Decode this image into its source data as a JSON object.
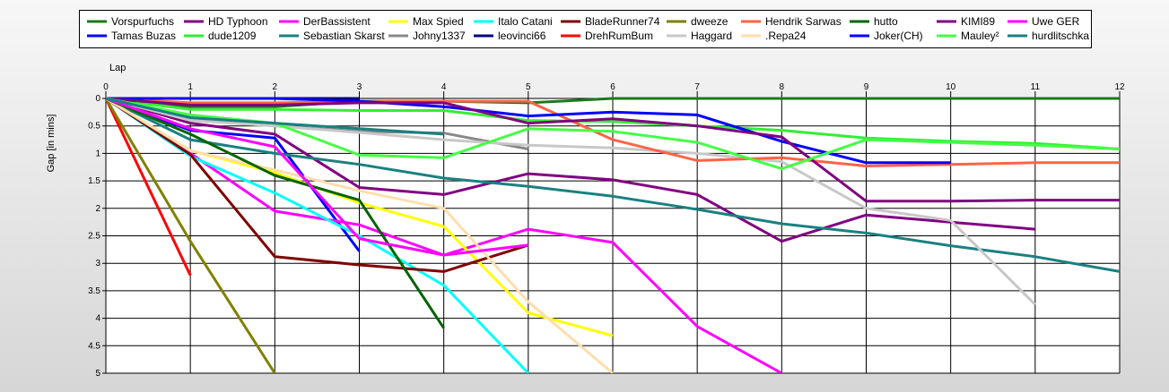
{
  "chart_data": {
    "type": "line",
    "xlabel": "Lap",
    "ylabel": "Gap [in mins]",
    "xlim": [
      0,
      12
    ],
    "ylim": [
      0,
      5
    ],
    "y_inverted": true,
    "x_ticks": [
      "0",
      "1",
      "2",
      "3",
      "4",
      "5",
      "6",
      "7",
      "8",
      "9",
      "10",
      "11",
      "12"
    ],
    "y_ticks": [
      "0",
      "0.5",
      "1",
      "1.5",
      "2",
      "2.5",
      "3",
      "3.5",
      "4",
      "4.5",
      "5"
    ],
    "grid": true,
    "legend_position": "top",
    "series": [
      {
        "name": "Vorspurfuchs",
        "color": "#1a7a1a",
        "values": [
          [
            0,
            0
          ],
          [
            1,
            0.15
          ],
          [
            2,
            0.15
          ],
          [
            3,
            0.05
          ],
          [
            4,
            0.05
          ],
          [
            5,
            0.08
          ],
          [
            6,
            0
          ],
          [
            7,
            0
          ],
          [
            8,
            0
          ],
          [
            9,
            0
          ],
          [
            10,
            0
          ],
          [
            11,
            0
          ],
          [
            12,
            0
          ]
        ]
      },
      {
        "name": "Tamas Buzas",
        "color": "#0000ff",
        "values": [
          [
            0,
            0
          ],
          [
            1,
            0.58
          ],
          [
            2,
            0.72
          ],
          [
            3,
            2.78
          ]
        ]
      },
      {
        "name": "HD Typhoon",
        "color": "#800080",
        "values": [
          [
            0,
            0
          ],
          [
            1,
            0.45
          ],
          [
            2,
            0.65
          ],
          [
            3,
            1.62
          ],
          [
            4,
            1.75
          ],
          [
            5,
            1.37
          ],
          [
            6,
            1.48
          ],
          [
            7,
            1.75
          ],
          [
            8,
            2.6
          ],
          [
            9,
            2.12
          ],
          [
            10,
            2.25
          ],
          [
            11,
            2.38
          ]
        ]
      },
      {
        "name": "dude1209",
        "color": "#33ee33",
        "values": [
          [
            0,
            0
          ],
          [
            1,
            0.2
          ],
          [
            2,
            0.2
          ],
          [
            3,
            0.22
          ],
          [
            4,
            0.22
          ],
          [
            5,
            0.4
          ],
          [
            6,
            0.42
          ],
          [
            7,
            0.5
          ],
          [
            8,
            0.58
          ],
          [
            9,
            0.72
          ],
          [
            10,
            0.78
          ],
          [
            11,
            0.82
          ],
          [
            12,
            0.92
          ]
        ]
      },
      {
        "name": "DerBassistent",
        "color": "#ff00ff",
        "values": [
          [
            0,
            0
          ],
          [
            1,
            1.0
          ],
          [
            2,
            2.05
          ],
          [
            3,
            2.3
          ],
          [
            4,
            2.85
          ],
          [
            5,
            2.38
          ],
          [
            6,
            2.62
          ],
          [
            7,
            4.15
          ],
          [
            8,
            5.0
          ]
        ]
      },
      {
        "name": "Sebastian Skarst",
        "color": "#1a8080",
        "values": [
          [
            0,
            0
          ],
          [
            1,
            0.75
          ],
          [
            2,
            1.0
          ],
          [
            3,
            1.2
          ],
          [
            4,
            1.45
          ],
          [
            5,
            1.6
          ],
          [
            6,
            1.78
          ],
          [
            7,
            2.02
          ],
          [
            8,
            2.28
          ],
          [
            9,
            2.45
          ],
          [
            10,
            2.68
          ],
          [
            11,
            2.88
          ],
          [
            12,
            3.15
          ]
        ]
      },
      {
        "name": "Max Spied",
        "color": "#ffff00",
        "values": [
          [
            0,
            0
          ],
          [
            1,
            0.95
          ],
          [
            2,
            1.35
          ],
          [
            3,
            1.9
          ],
          [
            4,
            2.33
          ],
          [
            5,
            3.9
          ],
          [
            6,
            4.32
          ]
        ]
      },
      {
        "name": "Johny1337",
        "color": "#888888",
        "values": [
          [
            0,
            0
          ],
          [
            1,
            0.35
          ],
          [
            2,
            0.5
          ],
          [
            3,
            0.6
          ],
          [
            4,
            0.63
          ],
          [
            5,
            0.92
          ]
        ]
      },
      {
        "name": "Italo Catani",
        "color": "#00ffff",
        "values": [
          [
            0,
            0
          ],
          [
            1,
            1.05
          ],
          [
            2,
            1.72
          ],
          [
            3,
            2.5
          ],
          [
            4,
            3.4
          ],
          [
            5,
            5.0
          ]
        ]
      },
      {
        "name": "leovinci66",
        "color": "#000080",
        "values": [
          [
            0,
            0
          ],
          [
            1,
            0
          ],
          [
            2,
            0
          ],
          [
            3,
            0
          ]
        ]
      },
      {
        "name": "BladeRunner74",
        "color": "#800000",
        "values": [
          [
            0,
            0
          ],
          [
            1,
            1.02
          ],
          [
            2,
            2.88
          ],
          [
            3,
            3.03
          ],
          [
            4,
            3.15
          ],
          [
            5,
            2.67
          ]
        ]
      },
      {
        "name": "DrehRumBum",
        "color": "#ff0000",
        "values": [
          [
            0,
            0
          ],
          [
            1,
            3.22
          ]
        ]
      },
      {
        "name": "dweeze",
        "color": "#808000",
        "values": [
          [
            0,
            0
          ],
          [
            1,
            2.6
          ],
          [
            2,
            5.0
          ]
        ]
      },
      {
        "name": "Haggard",
        "color": "#c8c8c8",
        "values": [
          [
            0,
            0
          ],
          [
            1,
            0.4
          ],
          [
            2,
            0.5
          ],
          [
            3,
            0.62
          ],
          [
            4,
            0.75
          ],
          [
            5,
            0.85
          ],
          [
            6,
            0.9
          ],
          [
            7,
            1.0
          ],
          [
            8,
            1.15
          ],
          [
            9,
            2.0
          ],
          [
            10,
            2.22
          ],
          [
            11,
            3.75
          ]
        ]
      },
      {
        "name": "Hendrik Sarwas",
        "color": "#ff6347",
        "values": [
          [
            0,
            0
          ],
          [
            1,
            0.08
          ],
          [
            2,
            0.08
          ],
          [
            3,
            0.06
          ],
          [
            4,
            0.05
          ],
          [
            5,
            0.05
          ],
          [
            6,
            0.75
          ],
          [
            7,
            1.13
          ],
          [
            8,
            1.08
          ],
          [
            9,
            1.23
          ],
          [
            10,
            1.2
          ],
          [
            11,
            1.17
          ],
          [
            12,
            1.17
          ]
        ]
      },
      {
        "name": ".Repa24",
        "color": "#ffdead",
        "values": [
          [
            0,
            0
          ],
          [
            1,
            0.95
          ],
          [
            2,
            1.3
          ],
          [
            3,
            1.68
          ],
          [
            4,
            2.0
          ],
          [
            5,
            3.7
          ],
          [
            6,
            5.0
          ]
        ]
      },
      {
        "name": "hutto",
        "color": "#006400",
        "values": [
          [
            0,
            0
          ],
          [
            1,
            0.65
          ],
          [
            2,
            1.4
          ],
          [
            3,
            1.85
          ],
          [
            4,
            4.18
          ]
        ]
      },
      {
        "name": "Joker(CH)",
        "color": "#0000ff",
        "values": [
          [
            0,
            0
          ],
          [
            1,
            0
          ],
          [
            2,
            0
          ],
          [
            3,
            0.05
          ],
          [
            4,
            0.15
          ],
          [
            5,
            0.32
          ],
          [
            6,
            0.25
          ],
          [
            7,
            0.3
          ],
          [
            8,
            0.78
          ],
          [
            9,
            1.17
          ],
          [
            10,
            1.17
          ]
        ]
      },
      {
        "name": "KIMI89",
        "color": "#800080",
        "values": [
          [
            0,
            0
          ],
          [
            1,
            0.12
          ],
          [
            2,
            0.12
          ],
          [
            3,
            0.08
          ],
          [
            4,
            0.08
          ],
          [
            5,
            0.45
          ],
          [
            6,
            0.37
          ],
          [
            7,
            0.5
          ],
          [
            8,
            0.7
          ],
          [
            9,
            1.87
          ],
          [
            10,
            1.87
          ],
          [
            11,
            1.85
          ],
          [
            12,
            1.85
          ]
        ]
      },
      {
        "name": "Mauley²",
        "color": "#44ff44",
        "values": [
          [
            0,
            0
          ],
          [
            1,
            0.3
          ],
          [
            2,
            0.45
          ],
          [
            3,
            1.03
          ],
          [
            4,
            1.08
          ],
          [
            5,
            0.55
          ],
          [
            6,
            0.6
          ],
          [
            7,
            0.8
          ],
          [
            8,
            1.28
          ],
          [
            9,
            0.75
          ],
          [
            10,
            0.8
          ],
          [
            11,
            0.85
          ],
          [
            12,
            0.92
          ]
        ]
      },
      {
        "name": "Uwe GER",
        "color": "#ff00ff",
        "values": [
          [
            0,
            0
          ],
          [
            1,
            0.55
          ],
          [
            2,
            0.88
          ],
          [
            3,
            2.55
          ],
          [
            4,
            2.85
          ],
          [
            5,
            2.67
          ]
        ]
      },
      {
        "name": "hurdlitschka",
        "color": "#1a8080",
        "values": [
          [
            0,
            0
          ],
          [
            1,
            0.35
          ],
          [
            2,
            0.45
          ],
          [
            3,
            0.55
          ],
          [
            4,
            0.65
          ]
        ]
      }
    ]
  }
}
